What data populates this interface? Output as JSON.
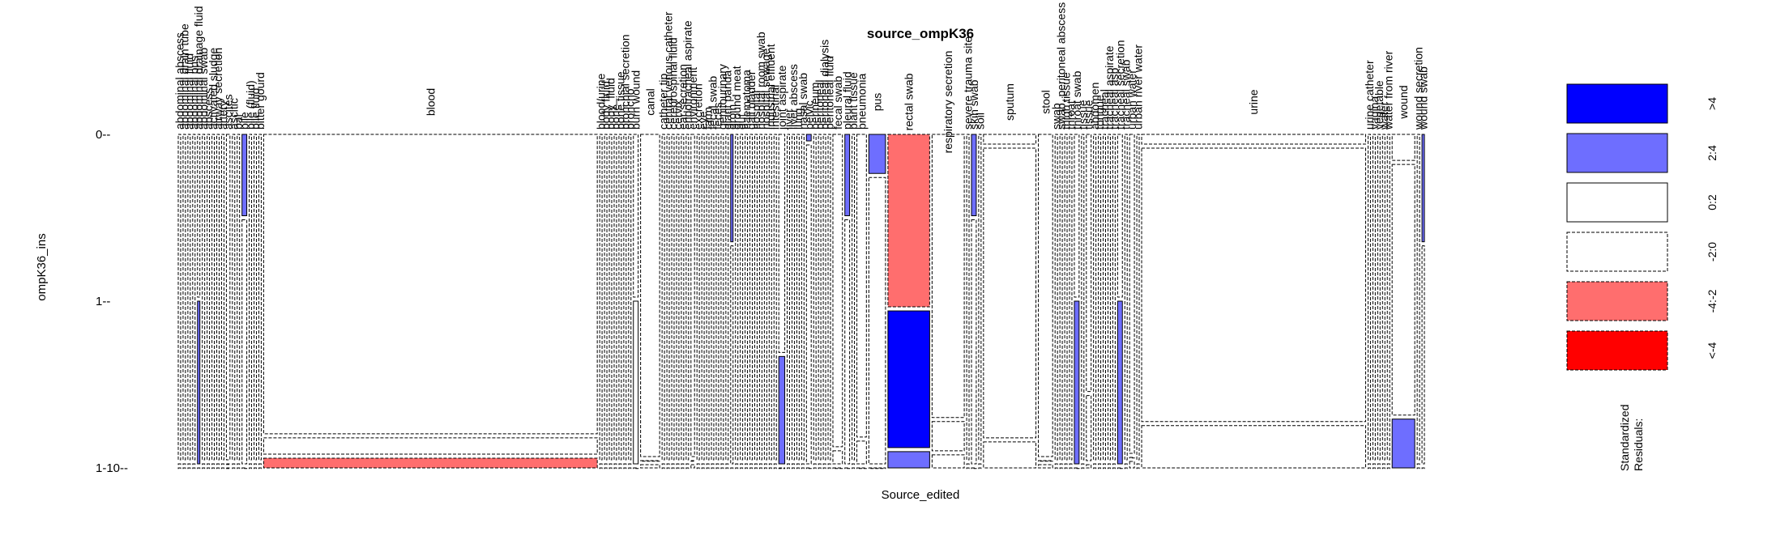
{
  "chart_data": {
    "type": "mosaic",
    "title": "source_ompK36",
    "xlabel": "Source_edited",
    "ylabel": "ompK36_ins",
    "y_levels": [
      "0",
      "1",
      "1-10"
    ],
    "legend_title": "Standardized\nResiduals:",
    "legend": [
      {
        "label": ">4",
        "color": "#0000ff",
        "dashed": false
      },
      {
        "label": "2:4",
        "color": "#6e6eff",
        "dashed": false
      },
      {
        "label": "0:2",
        "color": "#ffffff",
        "dashed": false
      },
      {
        "label": "-2:0",
        "color": "#ffffff",
        "dashed": true
      },
      {
        "label": "-4:-2",
        "color": "#ff6e6e",
        "dashed": true
      },
      {
        "label": "<-4",
        "color": "#ff0000",
        "dashed": true
      }
    ],
    "categories": [
      {
        "name": "abdominal abscess",
        "w": 2,
        "p": [
          1,
          0,
          0
        ],
        "r": [
          0,
          0,
          0
        ]
      },
      {
        "name": "abdominal drain tube",
        "w": 2,
        "p": [
          1,
          0,
          0
        ],
        "r": [
          0,
          0,
          0
        ]
      },
      {
        "name": "abdominal fluid",
        "w": 2,
        "p": [
          1,
          0,
          0
        ],
        "r": [
          0,
          0,
          0
        ]
      },
      {
        "name": "abdominal pus",
        "w": 2,
        "p": [
          1,
          0,
          0
        ],
        "r": [
          0,
          0,
          0
        ]
      },
      {
        "name": "abdominal drainage fluid",
        "w": 2,
        "p": [
          0.5,
          0.5,
          0
        ],
        "r": [
          0,
          2,
          0
        ]
      },
      {
        "name": "abdominal swab",
        "w": 2,
        "p": [
          1,
          0,
          0
        ],
        "r": [
          0,
          0,
          0
        ]
      },
      {
        "name": "abscess",
        "w": 2,
        "p": [
          1,
          0,
          0
        ],
        "r": [
          0,
          0,
          0
        ]
      },
      {
        "name": "activated sludge",
        "w": 2,
        "p": [
          1,
          0,
          0
        ],
        "r": [
          0,
          0,
          0
        ]
      },
      {
        "name": "airway secretion",
        "w": 2,
        "p": [
          1,
          0,
          0
        ],
        "r": [
          0,
          0,
          0
        ]
      },
      {
        "name": "artery",
        "w": 2,
        "p": [
          1,
          0,
          0
        ],
        "r": [
          0,
          0,
          0
        ]
      },
      {
        "name": "ascites",
        "w": 3,
        "p": [
          1,
          0,
          0
        ],
        "r": [
          0,
          0,
          0
        ]
      },
      {
        "name": "ascitic",
        "w": 2,
        "p": [
          1,
          0,
          0
        ],
        "r": [
          0,
          0,
          0
        ]
      },
      {
        "name": "bal",
        "w": 2,
        "p": [
          1,
          0,
          0
        ],
        "r": [
          0,
          0,
          0
        ]
      },
      {
        "name": "bile",
        "w": 4,
        "p": [
          0.25,
          0.75,
          0
        ],
        "r": [
          2,
          0,
          0
        ]
      },
      {
        "name": "bile (fluid)",
        "w": 2,
        "p": [
          1,
          0,
          0
        ],
        "r": [
          0,
          0,
          0
        ]
      },
      {
        "name": "bile fluid",
        "w": 2,
        "p": [
          1,
          0,
          0
        ],
        "r": [
          0,
          0,
          0
        ]
      },
      {
        "name": "bitter gourd",
        "w": 2,
        "p": [
          1,
          0,
          0
        ],
        "r": [
          0,
          0,
          0
        ]
      },
      {
        "name": "blood",
        "w": 280,
        "p": [
          0.92,
          0.05,
          0.03
        ],
        "r": [
          0,
          -1,
          -3
        ]
      },
      {
        "name": "blood/urine",
        "w": 2,
        "p": [
          1,
          0,
          0
        ],
        "r": [
          0,
          0,
          0
        ]
      },
      {
        "name": "body fluid",
        "w": 2,
        "p": [
          1,
          0,
          0
        ],
        "r": [
          0,
          0,
          0
        ]
      },
      {
        "name": "body_fluid",
        "w": 2,
        "p": [
          1,
          0,
          0
        ],
        "r": [
          0,
          0,
          0
        ]
      },
      {
        "name": "bone",
        "w": 2,
        "p": [
          1,
          0,
          0
        ],
        "r": [
          0,
          0,
          0
        ]
      },
      {
        "name": "bone tissue",
        "w": 2,
        "p": [
          1,
          0,
          0
        ],
        "r": [
          0,
          0,
          0
        ]
      },
      {
        "name": "bronchial secretion",
        "w": 2,
        "p": [
          1,
          0,
          0
        ],
        "r": [
          0,
          0,
          0
        ]
      },
      {
        "name": "broncho",
        "w": 2,
        "p": [
          1,
          0,
          0
        ],
        "r": [
          0,
          0,
          0
        ]
      },
      {
        "name": "burn wound",
        "w": 4,
        "p": [
          0.5,
          0.5,
          0
        ],
        "r": [
          -1,
          1,
          0
        ]
      },
      {
        "name": "canal",
        "w": 16,
        "p": [
          0.99,
          0,
          0.01
        ],
        "r": [
          0,
          -1,
          0
        ]
      },
      {
        "name": "catheter tip",
        "w": 2,
        "p": [
          1,
          0,
          0
        ],
        "r": [
          0,
          0,
          0
        ]
      },
      {
        "name": "central venous catheter",
        "w": 2,
        "p": [
          1,
          0,
          0
        ],
        "r": [
          0,
          0,
          0
        ]
      },
      {
        "name": "cerebrospinal fluid",
        "w": 2,
        "p": [
          1,
          0,
          0
        ],
        "r": [
          0,
          0,
          0
        ]
      },
      {
        "name": "cervix",
        "w": 2,
        "p": [
          1,
          0,
          0
        ],
        "r": [
          0,
          0,
          0
        ]
      },
      {
        "name": "ear secretion",
        "w": 2,
        "p": [
          1,
          0,
          0
        ],
        "r": [
          0,
          0,
          0
        ]
      },
      {
        "name": "endotracheal aspirate",
        "w": 2,
        "p": [
          1,
          0,
          0
        ],
        "r": [
          0,
          0,
          0
        ]
      },
      {
        "name": "environment",
        "w": 3,
        "p": [
          0.99,
          0,
          0.01
        ],
        "r": [
          0,
          0,
          0
        ]
      },
      {
        "name": "excretion",
        "w": 2,
        "p": [
          1,
          0,
          0
        ],
        "r": [
          0,
          0,
          0
        ]
      },
      {
        "name": "eye",
        "w": 2,
        "p": [
          1,
          0,
          0
        ],
        "r": [
          0,
          0,
          0
        ]
      },
      {
        "name": "farm",
        "w": 2,
        "p": [
          1,
          0,
          0
        ],
        "r": [
          0,
          0,
          0
        ]
      },
      {
        "name": "fecal swab",
        "w": 2,
        "p": [
          1,
          0,
          0
        ],
        "r": [
          0,
          0,
          0
        ]
      },
      {
        "name": "feces",
        "w": 2,
        "p": [
          1,
          0,
          0
        ],
        "r": [
          0,
          0,
          0
        ]
      },
      {
        "name": "genitourinary",
        "w": 2,
        "p": [
          1,
          0,
          0
        ],
        "r": [
          0,
          0,
          0
        ]
      },
      {
        "name": "giant panda",
        "w": 2,
        "p": [
          1,
          0,
          0
        ],
        "r": [
          0,
          0,
          0
        ]
      },
      {
        "name": "groin",
        "w": 2,
        "p": [
          0.33,
          0.67,
          0
        ],
        "r": [
          2,
          0,
          0
        ]
      },
      {
        "name": "ground meat",
        "w": 2,
        "p": [
          1,
          0,
          0
        ],
        "r": [
          0,
          0,
          0
        ]
      },
      {
        "name": "gut",
        "w": 2,
        "p": [
          1,
          0,
          0
        ],
        "r": [
          0,
          0,
          0
        ]
      },
      {
        "name": "haematoma",
        "w": 2,
        "p": [
          1,
          0,
          0
        ],
        "r": [
          0,
          0,
          0
        ]
      },
      {
        "name": "gall bladder",
        "w": 2,
        "p": [
          1,
          0,
          0
        ],
        "r": [
          0,
          0,
          0
        ]
      },
      {
        "name": "hospital",
        "w": 2,
        "p": [
          1,
          0,
          0
        ],
        "r": [
          0,
          0,
          0
        ]
      },
      {
        "name": "hospital room swab",
        "w": 2,
        "p": [
          1,
          0,
          0
        ],
        "r": [
          0,
          0,
          0
        ]
      },
      {
        "name": "hospital sewage",
        "w": 2,
        "p": [
          1,
          0,
          0
        ],
        "r": [
          0,
          0,
          0
        ]
      },
      {
        "name": "industrial effluent",
        "w": 2,
        "p": [
          1,
          0,
          0
        ],
        "r": [
          0,
          0,
          0
        ]
      },
      {
        "name": "intestinal",
        "w": 2,
        "p": [
          1,
          0,
          0
        ],
        "r": [
          0,
          0,
          0
        ]
      },
      {
        "name": "joint aspirate",
        "w": 5,
        "p": [
          0.67,
          0.33,
          0
        ],
        "r": [
          -1,
          2,
          0
        ]
      },
      {
        "name": "liver",
        "w": 2,
        "p": [
          1,
          0,
          0
        ],
        "r": [
          0,
          0,
          0
        ]
      },
      {
        "name": "liver abscess",
        "w": 2,
        "p": [
          1,
          0,
          0
        ],
        "r": [
          0,
          0,
          0
        ]
      },
      {
        "name": "lung",
        "w": 2,
        "p": [
          1,
          0,
          0
        ],
        "r": [
          0,
          0,
          0
        ]
      },
      {
        "name": "nasal swab",
        "w": 2,
        "p": [
          1,
          0,
          0
        ],
        "r": [
          0,
          0,
          0
        ]
      },
      {
        "name": "pelvic",
        "w": 4,
        "p": [
          0.02,
          0.98,
          0
        ],
        "r": [
          2,
          0,
          0
        ]
      },
      {
        "name": "perineum",
        "w": 2,
        "p": [
          1,
          0,
          0
        ],
        "r": [
          0,
          0,
          0
        ]
      },
      {
        "name": "peritoneal",
        "w": 2,
        "p": [
          1,
          0,
          0
        ],
        "r": [
          0,
          0,
          0
        ]
      },
      {
        "name": "peritoneal dialysis",
        "w": 2,
        "p": [
          1,
          0,
          0
        ],
        "r": [
          0,
          0,
          0
        ]
      },
      {
        "name": "peritoneal fluid",
        "w": 2,
        "p": [
          1,
          0,
          0
        ],
        "r": [
          0,
          0,
          0
        ]
      },
      {
        "name": "fecal swab",
        "w": 8,
        "p": [
          0.96,
          0.04,
          0
        ],
        "r": [
          0,
          -1,
          0
        ]
      },
      {
        "name": "pleural fluid",
        "w": 4,
        "p": [
          0.25,
          0.75,
          0
        ],
        "r": [
          2,
          0,
          0
        ]
      },
      {
        "name": "plant tissue",
        "w": 2,
        "p": [
          1,
          0,
          0
        ],
        "r": [
          0,
          0,
          0
        ]
      },
      {
        "name": "pneumonia",
        "w": 8,
        "p": [
          0.93,
          0.07,
          0
        ],
        "r": [
          0,
          -1,
          0
        ]
      },
      {
        "name": "pus",
        "w": 14,
        "p": [
          0.12,
          0.88,
          0
        ],
        "r": [
          2,
          0,
          0
        ]
      },
      {
        "name": "rectal swab",
        "w": 35,
        "p": [
          0.53,
          0.42,
          0.05
        ],
        "r": [
          -3,
          5,
          3
        ]
      },
      {
        "name": "respiratory secretion",
        "w": 27,
        "p": [
          0.87,
          0.09,
          0.04
        ],
        "r": [
          0,
          -1,
          -1
        ]
      },
      {
        "name": "severe trauma site",
        "w": 2,
        "p": [
          1,
          0,
          0
        ],
        "r": [
          0,
          0,
          0
        ]
      },
      {
        "name": "skin swab",
        "w": 4,
        "p": [
          0.25,
          0.75,
          0
        ],
        "r": [
          2,
          0,
          0
        ]
      },
      {
        "name": "soil",
        "w": 2,
        "p": [
          1,
          0,
          0
        ],
        "r": [
          0,
          0,
          0
        ]
      },
      {
        "name": "sputum",
        "w": 44,
        "p": [
          0.03,
          0.89,
          0.08
        ],
        "r": [
          0,
          0,
          -1
        ]
      },
      {
        "name": "stool",
        "w": 12,
        "p": [
          0.99,
          0,
          0.01
        ],
        "r": [
          0,
          -1,
          0
        ]
      },
      {
        "name": "swab",
        "w": 2,
        "p": [
          1,
          0,
          0
        ],
        "r": [
          0,
          0,
          0
        ]
      },
      {
        "name": "swab, peritoneal abscess",
        "w": 2,
        "p": [
          1,
          0,
          0
        ],
        "r": [
          0,
          0,
          0
        ]
      },
      {
        "name": "thigh tissue",
        "w": 2,
        "p": [
          1,
          0,
          0
        ],
        "r": [
          0,
          0,
          0
        ]
      },
      {
        "name": "throat",
        "w": 2,
        "p": [
          1,
          0,
          0
        ],
        "r": [
          0,
          0,
          0
        ]
      },
      {
        "name": "throat swab",
        "w": 4,
        "p": [
          0.5,
          0.5,
          0
        ],
        "r": [
          -1,
          2,
          0
        ]
      },
      {
        "name": "tissue",
        "w": 2,
        "p": [
          1,
          0,
          0
        ],
        "r": [
          0,
          0,
          0
        ]
      },
      {
        "name": "tissue",
        "w": 4,
        "p": [
          0.79,
          0.2,
          0.01
        ],
        "r": [
          0,
          0,
          0
        ]
      },
      {
        "name": "abdomen",
        "w": 2,
        "p": [
          1,
          0,
          0
        ],
        "r": [
          0,
          0,
          0
        ]
      },
      {
        "name": "tongue",
        "w": 2,
        "p": [
          1,
          0,
          0
        ],
        "r": [
          0,
          0,
          0
        ]
      },
      {
        "name": "tracheal",
        "w": 2,
        "p": [
          1,
          0,
          0
        ],
        "r": [
          0,
          0,
          0
        ]
      },
      {
        "name": "tracheal aspirate",
        "w": 2,
        "p": [
          1,
          0,
          0
        ],
        "r": [
          0,
          0,
          0
        ]
      },
      {
        "name": "tracheal asp",
        "w": 2,
        "p": [
          1,
          0,
          0
        ],
        "r": [
          0,
          0,
          0
        ]
      },
      {
        "name": "tracheal secretion",
        "w": 4,
        "p": [
          0.5,
          0.5,
          0
        ],
        "r": [
          0,
          2,
          0
        ]
      },
      {
        "name": "tracheal swab",
        "w": 2,
        "p": [
          1,
          0,
          0
        ],
        "r": [
          0,
          0,
          0
        ]
      },
      {
        "name": "urban water",
        "w": 4,
        "p": [
          0.98,
          0,
          0.02
        ],
        "r": [
          0,
          -1,
          0
        ]
      },
      {
        "name": "urban river water",
        "w": 2,
        "p": [
          1,
          0,
          0
        ],
        "r": [
          0,
          0,
          0
        ]
      },
      {
        "name": "urine",
        "w": 188,
        "p": [
          0.03,
          0.84,
          0.13
        ],
        "r": [
          0,
          -1,
          -1
        ]
      },
      {
        "name": "urine catheter",
        "w": 2,
        "p": [
          1,
          0,
          0
        ],
        "r": [
          0,
          0,
          0
        ]
      },
      {
        "name": "vagina",
        "w": 2,
        "p": [
          1,
          0,
          0
        ],
        "r": [
          0,
          0,
          0
        ]
      },
      {
        "name": "vegetable",
        "w": 2,
        "p": [
          1,
          0,
          0
        ],
        "r": [
          0,
          0,
          0
        ]
      },
      {
        "name": "water",
        "w": 2,
        "p": [
          1,
          0,
          0
        ],
        "r": [
          0,
          0,
          0
        ]
      },
      {
        "name": "water from river",
        "w": 2,
        "p": [
          1,
          0,
          0
        ],
        "r": [
          0,
          0,
          0
        ]
      },
      {
        "name": "wound",
        "w": 19,
        "p": [
          0.08,
          0.77,
          0.15
        ],
        "r": [
          0,
          -1,
          2
        ]
      },
      {
        "name": "wound secretion",
        "w": 2,
        "p": [
          1,
          0,
          0
        ],
        "r": [
          0,
          0,
          0
        ]
      },
      {
        "name": "wound swab",
        "w": 2,
        "p": [
          0.33,
          0.67,
          0
        ],
        "r": [
          2,
          0,
          0
        ]
      }
    ]
  }
}
